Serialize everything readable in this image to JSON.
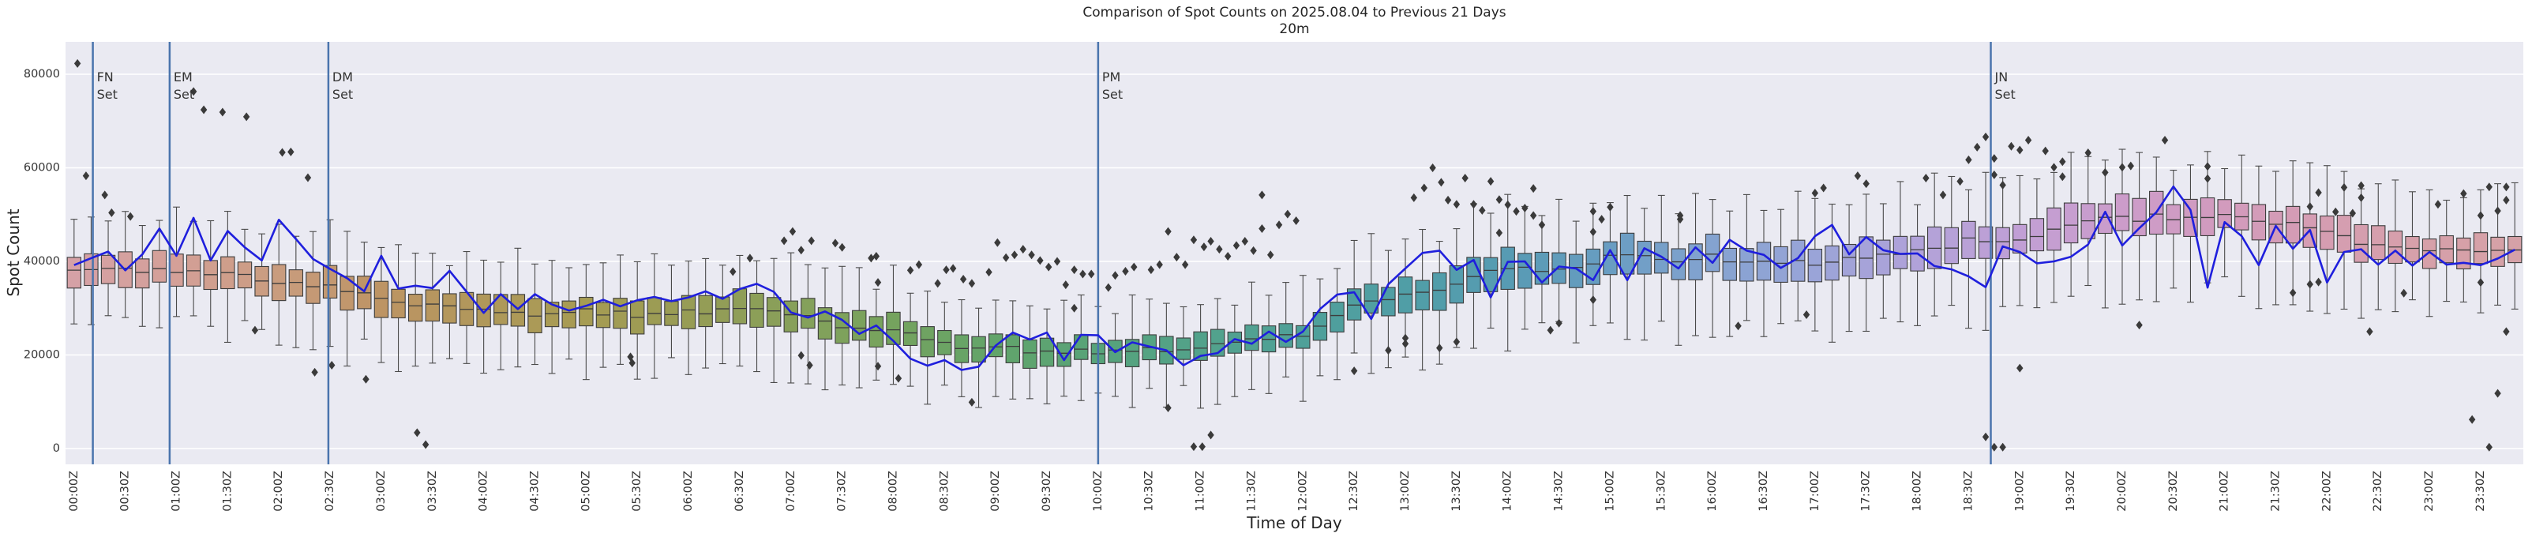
{
  "title": "Comparison of Spot Counts on 2025.08.04 to Previous 21 Days",
  "subtitle": "20m",
  "x_axis": {
    "label": "Time of Day",
    "tick_labels": [
      "00:00Z",
      "00:30Z",
      "01:00Z",
      "01:30Z",
      "02:00Z",
      "02:30Z",
      "03:00Z",
      "03:30Z",
      "04:00Z",
      "04:30Z",
      "05:00Z",
      "05:30Z",
      "06:00Z",
      "06:30Z",
      "07:00Z",
      "07:30Z",
      "08:00Z",
      "08:30Z",
      "09:00Z",
      "09:30Z",
      "10:00Z",
      "10:30Z",
      "11:00Z",
      "11:30Z",
      "12:00Z",
      "12:30Z",
      "13:00Z",
      "13:30Z",
      "14:00Z",
      "14:30Z",
      "15:00Z",
      "15:30Z",
      "16:00Z",
      "16:30Z",
      "17:00Z",
      "17:30Z",
      "18:00Z",
      "18:30Z",
      "19:00Z",
      "19:30Z",
      "20:00Z",
      "20:30Z",
      "21:00Z",
      "21:30Z",
      "22:00Z",
      "22:30Z",
      "23:00Z",
      "23:30Z"
    ]
  },
  "y_axis": {
    "label": "Spot Count",
    "ticks": [
      0,
      20000,
      40000,
      60000,
      80000
    ],
    "tick_labels": [
      "0",
      "20000",
      "40000",
      "60000",
      "80000"
    ]
  },
  "colors": {
    "page_bg": "#ffffff",
    "plot_bg": "#eaeaf2",
    "grid": "#ffffff",
    "current_line": "#1f1fdd",
    "event_line": "#4a74ad",
    "box_edge": "#3d3d3d",
    "whisker": "#4a4a4a",
    "outlier": "#3a3a3a",
    "text": "#262626",
    "tick_text": "#333333",
    "hour_palette": [
      "#d5a1a6",
      "#d4a098",
      "#c99c7e",
      "#bd9464",
      "#b0985a",
      "#a69c53",
      "#979c55",
      "#87a05a",
      "#75a35e",
      "#62a46a",
      "#57a37a",
      "#52a28b",
      "#4fa099",
      "#509ea6",
      "#579bb3",
      "#699dc2",
      "#84a3d0",
      "#9aa4d8",
      "#b1a2d9",
      "#c19fd5",
      "#cc9cca",
      "#d29bbd",
      "#d59db1",
      "#d6a0a9",
      "#d5a1a6"
    ]
  },
  "event_lines": [
    {
      "label": "FN Set",
      "minutes": 11
    },
    {
      "label": "EM Set",
      "minutes": 56
    },
    {
      "label": "DM Set",
      "minutes": 149
    },
    {
      "label": "PM Set",
      "minutes": 600
    },
    {
      "label": "JN Set",
      "minutes": 1123
    }
  ],
  "chart_data": {
    "type": "boxplot+line",
    "bin_minutes": 10,
    "bin_count": 144,
    "ylim": [
      -3400,
      86900
    ],
    "grid": "horizontal",
    "legend": "none",
    "current_day_line_values": [
      39200,
      40700,
      42100,
      38100,
      41500,
      47000,
      41200,
      49300,
      40200,
      46500,
      43000,
      40200,
      48900,
      44800,
      40500,
      38400,
      36400,
      33600,
      41200,
      34200,
      34800,
      34300,
      38000,
      33500,
      29000,
      33000,
      29800,
      33000,
      30800,
      29500,
      30500,
      31800,
      30400,
      31700,
      32400,
      31500,
      32300,
      33600,
      32000,
      34100,
      35200,
      33500,
      29100,
      28000,
      29300,
      27500,
      24500,
      26300,
      23000,
      19200,
      17700,
      18900,
      16800,
      17500,
      22000,
      24800,
      23300,
      24800,
      18900,
      24300,
      24200,
      20600,
      22700,
      21800,
      21000,
      17800,
      19800,
      20400,
      23400,
      22400,
      25000,
      22800,
      25000,
      29800,
      32900,
      33400,
      27700,
      35100,
      38500,
      41800,
      42300,
      38200,
      40300,
      32300,
      39900,
      40000,
      35500,
      38900,
      38500,
      36000,
      42400,
      36000,
      42800,
      41000,
      38500,
      43000,
      39700,
      44600,
      42300,
      41400,
      38600,
      40700,
      45400,
      47800,
      41500,
      45200,
      42400,
      41600,
      41700,
      39000,
      38300,
      36800,
      34500,
      43200,
      42000,
      39600,
      40000,
      41000,
      43600,
      50600,
      43400,
      47100,
      50500,
      56000,
      51000,
      34400,
      48400,
      45400,
      39200,
      47600,
      42700,
      46700,
      35500,
      42000,
      42600,
      39300,
      42300,
      39100,
      42000,
      39300,
      39700,
      39200,
      40600,
      42500
    ],
    "box_summary_30min": [
      {
        "t": "00:00",
        "med": 38600,
        "q1": 35400,
        "q3": 41800,
        "lo": 27400,
        "hi": 49300
      },
      {
        "t": "00:30",
        "med": 38100,
        "q1": 34800,
        "q3": 41400,
        "lo": 26300,
        "hi": 49400
      },
      {
        "t": "01:00",
        "med": 38100,
        "q1": 34700,
        "q3": 41500,
        "lo": 25700,
        "hi": 50000
      },
      {
        "t": "01:30",
        "med": 37500,
        "q1": 34100,
        "q3": 40900,
        "lo": 25100,
        "hi": 48900
      },
      {
        "t": "02:00",
        "med": 35800,
        "q1": 32300,
        "q3": 39300,
        "lo": 23300,
        "hi": 47800
      },
      {
        "t": "02:30",
        "med": 34600,
        "q1": 31200,
        "q3": 38000,
        "lo": 21700,
        "hi": 46000
      },
      {
        "t": "03:00",
        "med": 32300,
        "q1": 29000,
        "q3": 35600,
        "lo": 20000,
        "hi": 43600
      },
      {
        "t": "03:30",
        "med": 30600,
        "q1": 27400,
        "q3": 33800,
        "lo": 17900,
        "hi": 41800
      },
      {
        "t": "04:00",
        "med": 29500,
        "q1": 26300,
        "q3": 32700,
        "lo": 15800,
        "hi": 41200
      },
      {
        "t": "04:30",
        "med": 28500,
        "q1": 25500,
        "q3": 31500,
        "lo": 16500,
        "hi": 39500
      },
      {
        "t": "05:00",
        "med": 29400,
        "q1": 26300,
        "q3": 32500,
        "lo": 16800,
        "hi": 40500
      },
      {
        "t": "05:30",
        "med": 28600,
        "q1": 25600,
        "q3": 31600,
        "lo": 16600,
        "hi": 39100
      },
      {
        "t": "06:00",
        "med": 29400,
        "q1": 26300,
        "q3": 32500,
        "lo": 16800,
        "hi": 40500
      },
      {
        "t": "06:30",
        "med": 29700,
        "q1": 26400,
        "q3": 33000,
        "lo": 16400,
        "hi": 41500
      },
      {
        "t": "07:00",
        "med": 28800,
        "q1": 25700,
        "q3": 31900,
        "lo": 15700,
        "hi": 39900
      },
      {
        "t": "07:30",
        "med": 26500,
        "q1": 23500,
        "q3": 29500,
        "lo": 14000,
        "hi": 37500
      },
      {
        "t": "08:00",
        "med": 24800,
        "q1": 21900,
        "q3": 27700,
        "lo": 12900,
        "hi": 35700
      },
      {
        "t": "08:30",
        "med": 22400,
        "q1": 19600,
        "q3": 25200,
        "lo": 11100,
        "hi": 33200
      },
      {
        "t": "09:00",
        "med": 21500,
        "q1": 18800,
        "q3": 24200,
        "lo": 10800,
        "hi": 31700
      },
      {
        "t": "09:30",
        "med": 20700,
        "q1": 18000,
        "q3": 23400,
        "lo": 10500,
        "hi": 30900
      },
      {
        "t": "10:00",
        "med": 20400,
        "q1": 17700,
        "q3": 23100,
        "lo": 10200,
        "hi": 31100
      },
      {
        "t": "10:30",
        "med": 21000,
        "q1": 18300,
        "q3": 23700,
        "lo": 10800,
        "hi": 31200
      },
      {
        "t": "11:00",
        "med": 21600,
        "q1": 18900,
        "q3": 24300,
        "lo": 10900,
        "hi": 31800
      },
      {
        "t": "11:30",
        "med": 23000,
        "q1": 20200,
        "q3": 25800,
        "lo": 11700,
        "hi": 33800
      },
      {
        "t": "12:00",
        "med": 24200,
        "q1": 21300,
        "q3": 27100,
        "lo": 12300,
        "hi": 35600
      },
      {
        "t": "12:30",
        "med": 30900,
        "q1": 27700,
        "q3": 34100,
        "lo": 17700,
        "hi": 42600
      },
      {
        "t": "13:00",
        "med": 32600,
        "q1": 29300,
        "q3": 35900,
        "lo": 18800,
        "hi": 44900
      },
      {
        "t": "13:30",
        "med": 35300,
        "q1": 31900,
        "q3": 38700,
        "lo": 20900,
        "hi": 47700
      },
      {
        "t": "14:00",
        "med": 38500,
        "q1": 34900,
        "q3": 42100,
        "lo": 23900,
        "hi": 51100
      },
      {
        "t": "14:30",
        "med": 38200,
        "q1": 34600,
        "q3": 41800,
        "lo": 23100,
        "hi": 51300
      },
      {
        "t": "15:00",
        "med": 40800,
        "q1": 37100,
        "q3": 44500,
        "lo": 26100,
        "hi": 53500
      },
      {
        "t": "15:30",
        "med": 40500,
        "q1": 36900,
        "q3": 44100,
        "lo": 25900,
        "hi": 53100
      },
      {
        "t": "16:00",
        "med": 40800,
        "q1": 37200,
        "q3": 44400,
        "lo": 25700,
        "hi": 53900
      },
      {
        "t": "16:30",
        "med": 39900,
        "q1": 36300,
        "q3": 43500,
        "lo": 25300,
        "hi": 52500
      },
      {
        "t": "17:00",
        "med": 39700,
        "q1": 36200,
        "q3": 43200,
        "lo": 24700,
        "hi": 52700
      },
      {
        "t": "17:30",
        "med": 40500,
        "q1": 36900,
        "q3": 44100,
        "lo": 25400,
        "hi": 53600
      },
      {
        "t": "18:00",
        "med": 42000,
        "q1": 38400,
        "q3": 45600,
        "lo": 26900,
        "hi": 54600
      },
      {
        "t": "18:30",
        "med": 44300,
        "q1": 40700,
        "q3": 47900,
        "lo": 28700,
        "hi": 57400
      },
      {
        "t": "19:00",
        "med": 44900,
        "q1": 41200,
        "q3": 48600,
        "lo": 28700,
        "hi": 58100
      },
      {
        "t": "19:30",
        "med": 48400,
        "q1": 44700,
        "q3": 52100,
        "lo": 31700,
        "hi": 61100
      },
      {
        "t": "20:00",
        "med": 49000,
        "q1": 45200,
        "q3": 52800,
        "lo": 31700,
        "hi": 62300
      },
      {
        "t": "20:30",
        "med": 49600,
        "q1": 45800,
        "q3": 53400,
        "lo": 32800,
        "hi": 62400
      },
      {
        "t": "21:00",
        "med": 49700,
        "q1": 46000,
        "q3": 53400,
        "lo": 34000,
        "hi": 62400
      },
      {
        "t": "21:30",
        "med": 48500,
        "q1": 44900,
        "q3": 52100,
        "lo": 33400,
        "hi": 61100
      },
      {
        "t": "22:00",
        "med": 46000,
        "q1": 42500,
        "q3": 49500,
        "lo": 31500,
        "hi": 59000
      },
      {
        "t": "22:30",
        "med": 42900,
        "q1": 39500,
        "q3": 46300,
        "lo": 29000,
        "hi": 55300
      },
      {
        "t": "23:00",
        "med": 42300,
        "q1": 39000,
        "q3": 45600,
        "lo": 29000,
        "hi": 54600
      },
      {
        "t": "23:30",
        "med": 42300,
        "q1": 39000,
        "q3": 45600,
        "lo": 29000,
        "hi": 54600
      }
    ],
    "outliers": [
      [
        2,
        82300
      ],
      [
        7,
        58300
      ],
      [
        18,
        54200
      ],
      [
        22,
        50400
      ],
      [
        33,
        49600
      ],
      [
        70,
        76300
      ],
      [
        76,
        72400
      ],
      [
        87,
        71900
      ],
      [
        101,
        70900
      ],
      [
        106,
        25300
      ],
      [
        122,
        63300
      ],
      [
        127,
        63400
      ],
      [
        137,
        57900
      ],
      [
        141,
        16300
      ],
      [
        151,
        17800
      ],
      [
        171,
        14800
      ],
      [
        201,
        3400
      ],
      [
        206,
        850
      ],
      [
        326,
        19600
      ],
      [
        327,
        18300
      ],
      [
        386,
        37800
      ],
      [
        396,
        40700
      ],
      [
        416,
        44400
      ],
      [
        421,
        46400
      ],
      [
        426,
        42400
      ],
      [
        426,
        19900
      ],
      [
        431,
        17800
      ],
      [
        432,
        44400
      ],
      [
        446,
        43900
      ],
      [
        450,
        43000
      ],
      [
        467,
        40700
      ],
      [
        470,
        41100
      ],
      [
        471,
        35500
      ],
      [
        471,
        17600
      ],
      [
        483,
        15000
      ],
      [
        490,
        38100
      ],
      [
        495,
        39300
      ],
      [
        506,
        35300
      ],
      [
        511,
        38200
      ],
      [
        515,
        38500
      ],
      [
        521,
        36200
      ],
      [
        526,
        35300
      ],
      [
        526,
        9900
      ],
      [
        536,
        37700
      ],
      [
        541,
        44000
      ],
      [
        546,
        40800
      ],
      [
        551,
        41400
      ],
      [
        556,
        42600
      ],
      [
        561,
        41400
      ],
      [
        566,
        40200
      ],
      [
        571,
        38800
      ],
      [
        576,
        40000
      ],
      [
        581,
        35000
      ],
      [
        586,
        30000
      ],
      [
        586,
        38200
      ],
      [
        591,
        37300
      ],
      [
        596,
        37300
      ],
      [
        606,
        34400
      ],
      [
        610,
        37000
      ],
      [
        616,
        37900
      ],
      [
        621,
        38800
      ],
      [
        631,
        38200
      ],
      [
        636,
        39300
      ],
      [
        641,
        46400
      ],
      [
        641,
        8700
      ],
      [
        646,
        40900
      ],
      [
        651,
        39300
      ],
      [
        656,
        44600
      ],
      [
        656,
        400
      ],
      [
        661,
        400
      ],
      [
        662,
        43100
      ],
      [
        666,
        44300
      ],
      [
        666,
        2900
      ],
      [
        671,
        42600
      ],
      [
        676,
        41100
      ],
      [
        681,
        43400
      ],
      [
        686,
        44300
      ],
      [
        691,
        42300
      ],
      [
        696,
        47000
      ],
      [
        696,
        54200
      ],
      [
        701,
        41400
      ],
      [
        706,
        47800
      ],
      [
        711,
        50100
      ],
      [
        716,
        48700
      ],
      [
        750,
        16600
      ],
      [
        770,
        21000
      ],
      [
        780,
        23600
      ],
      [
        780,
        22400
      ],
      [
        785,
        53600
      ],
      [
        791,
        55700
      ],
      [
        796,
        60000
      ],
      [
        800,
        21500
      ],
      [
        801,
        56900
      ],
      [
        805,
        53100
      ],
      [
        810,
        52200
      ],
      [
        810,
        22800
      ],
      [
        815,
        57800
      ],
      [
        820,
        52200
      ],
      [
        825,
        50900
      ],
      [
        830,
        57100
      ],
      [
        835,
        53200
      ],
      [
        835,
        46100
      ],
      [
        840,
        52100
      ],
      [
        845,
        50700
      ],
      [
        850,
        51400
      ],
      [
        855,
        55600
      ],
      [
        855,
        49800
      ],
      [
        860,
        47800
      ],
      [
        865,
        25300
      ],
      [
        870,
        26800
      ],
      [
        890,
        50700
      ],
      [
        890,
        46300
      ],
      [
        890,
        31800
      ],
      [
        895,
        49000
      ],
      [
        900,
        51600
      ],
      [
        941,
        49800
      ],
      [
        941,
        49000
      ],
      [
        975,
        26200
      ],
      [
        1015,
        28600
      ],
      [
        1020,
        54600
      ],
      [
        1025,
        55700
      ],
      [
        1045,
        58300
      ],
      [
        1050,
        56600
      ],
      [
        1085,
        57800
      ],
      [
        1095,
        54200
      ],
      [
        1105,
        57100
      ],
      [
        1110,
        61700
      ],
      [
        1115,
        64400
      ],
      [
        1120,
        66600
      ],
      [
        1125,
        62000
      ],
      [
        1125,
        58500
      ],
      [
        1130,
        56300
      ],
      [
        1135,
        64600
      ],
      [
        1140,
        63800
      ],
      [
        1145,
        65900
      ],
      [
        1120,
        2500
      ],
      [
        1125,
        300
      ],
      [
        1130,
        300
      ],
      [
        1140,
        17200
      ],
      [
        1155,
        63600
      ],
      [
        1160,
        60100
      ],
      [
        1165,
        61300
      ],
      [
        1165,
        58100
      ],
      [
        1180,
        63200
      ],
      [
        1190,
        59000
      ],
      [
        1200,
        60100
      ],
      [
        1205,
        60400
      ],
      [
        1210,
        26400
      ],
      [
        1225,
        65900
      ],
      [
        1250,
        60300
      ],
      [
        1250,
        57700
      ],
      [
        1300,
        33300
      ],
      [
        1310,
        51700
      ],
      [
        1310,
        35100
      ],
      [
        1315,
        35600
      ],
      [
        1315,
        54700
      ],
      [
        1325,
        50600
      ],
      [
        1330,
        55800
      ],
      [
        1335,
        50300
      ],
      [
        1340,
        56200
      ],
      [
        1340,
        53600
      ],
      [
        1345,
        25000
      ],
      [
        1365,
        33200
      ],
      [
        1385,
        52200
      ],
      [
        1400,
        54500
      ],
      [
        1405,
        6200
      ],
      [
        1410,
        35500
      ],
      [
        1410,
        49800
      ],
      [
        1415,
        300
      ],
      [
        1415,
        55900
      ],
      [
        1420,
        50800
      ],
      [
        1420,
        11800
      ],
      [
        1425,
        55900
      ],
      [
        1425,
        53100
      ],
      [
        1425,
        25000
      ]
    ]
  }
}
